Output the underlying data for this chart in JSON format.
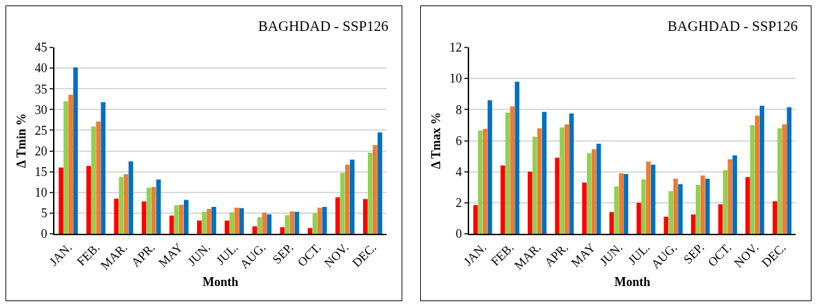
{
  "chart_data": [
    {
      "type": "bar",
      "title": "BAGHDAD - SSP126",
      "xlabel": "Month",
      "ylabel": "Δ Tmin %",
      "categories": [
        "JAN.",
        "FEB.",
        "MAR.",
        "APR.",
        "MAY",
        "JUN.",
        "JUL.",
        "AUG.",
        "SEP.",
        "OCT.",
        "NOV.",
        "DEC."
      ],
      "series": [
        {
          "color": "#ff0000",
          "values": [
            16,
            16.4,
            8.5,
            7.8,
            4.4,
            3.2,
            3.2,
            1.8,
            1.6,
            1.4,
            8.8,
            8.4
          ]
        },
        {
          "color": "#92d050",
          "values": [
            32,
            25.9,
            13.7,
            11.1,
            6.9,
            5.3,
            5.2,
            4.0,
            4.5,
            5.0,
            14.7,
            19.6
          ]
        },
        {
          "color": "#ed7d31",
          "values": [
            33.6,
            27.1,
            14.4,
            11.3,
            7.0,
            6.0,
            6.3,
            5.1,
            5.4,
            6.3,
            16.7,
            21.4
          ]
        },
        {
          "color": "#0070c0",
          "values": [
            40.2,
            31.8,
            17.5,
            13.1,
            8.2,
            6.5,
            6.2,
            4.7,
            5.3,
            6.5,
            17.9,
            24.5
          ]
        }
      ],
      "ylim": [
        0,
        45
      ],
      "yticks": [
        0,
        5,
        10,
        15,
        20,
        25,
        30,
        35,
        40,
        45
      ],
      "grid": "y"
    },
    {
      "type": "bar",
      "title": "BAGHDAD - SSP126",
      "xlabel": "Month",
      "ylabel": "Δ Tmax %",
      "categories": [
        "JAN.",
        "FEB.",
        "MAR.",
        "APR.",
        "MAY",
        "JUN.",
        "JUL.",
        "AUG.",
        "SEP.",
        "OCT.",
        "NOV.",
        "DEC."
      ],
      "series": [
        {
          "color": "#ff0000",
          "values": [
            1.85,
            4.4,
            4.0,
            4.9,
            3.3,
            1.4,
            2.0,
            1.1,
            1.25,
            1.9,
            3.65,
            2.1
          ]
        },
        {
          "color": "#92d050",
          "values": [
            6.65,
            7.8,
            6.25,
            6.85,
            5.2,
            3.05,
            3.5,
            2.75,
            3.15,
            4.1,
            7.0,
            6.8
          ]
        },
        {
          "color": "#ed7d31",
          "values": [
            6.75,
            8.2,
            6.8,
            7.05,
            5.45,
            3.9,
            4.65,
            3.55,
            3.75,
            4.8,
            7.6,
            7.05
          ]
        },
        {
          "color": "#0070c0",
          "values": [
            8.6,
            9.8,
            7.85,
            7.75,
            5.8,
            3.85,
            4.45,
            3.2,
            3.55,
            5.05,
            8.25,
            8.15
          ]
        }
      ],
      "ylim": [
        0,
        12
      ],
      "yticks": [
        0,
        2,
        4,
        6,
        8,
        10,
        12
      ],
      "grid": "y"
    }
  ]
}
